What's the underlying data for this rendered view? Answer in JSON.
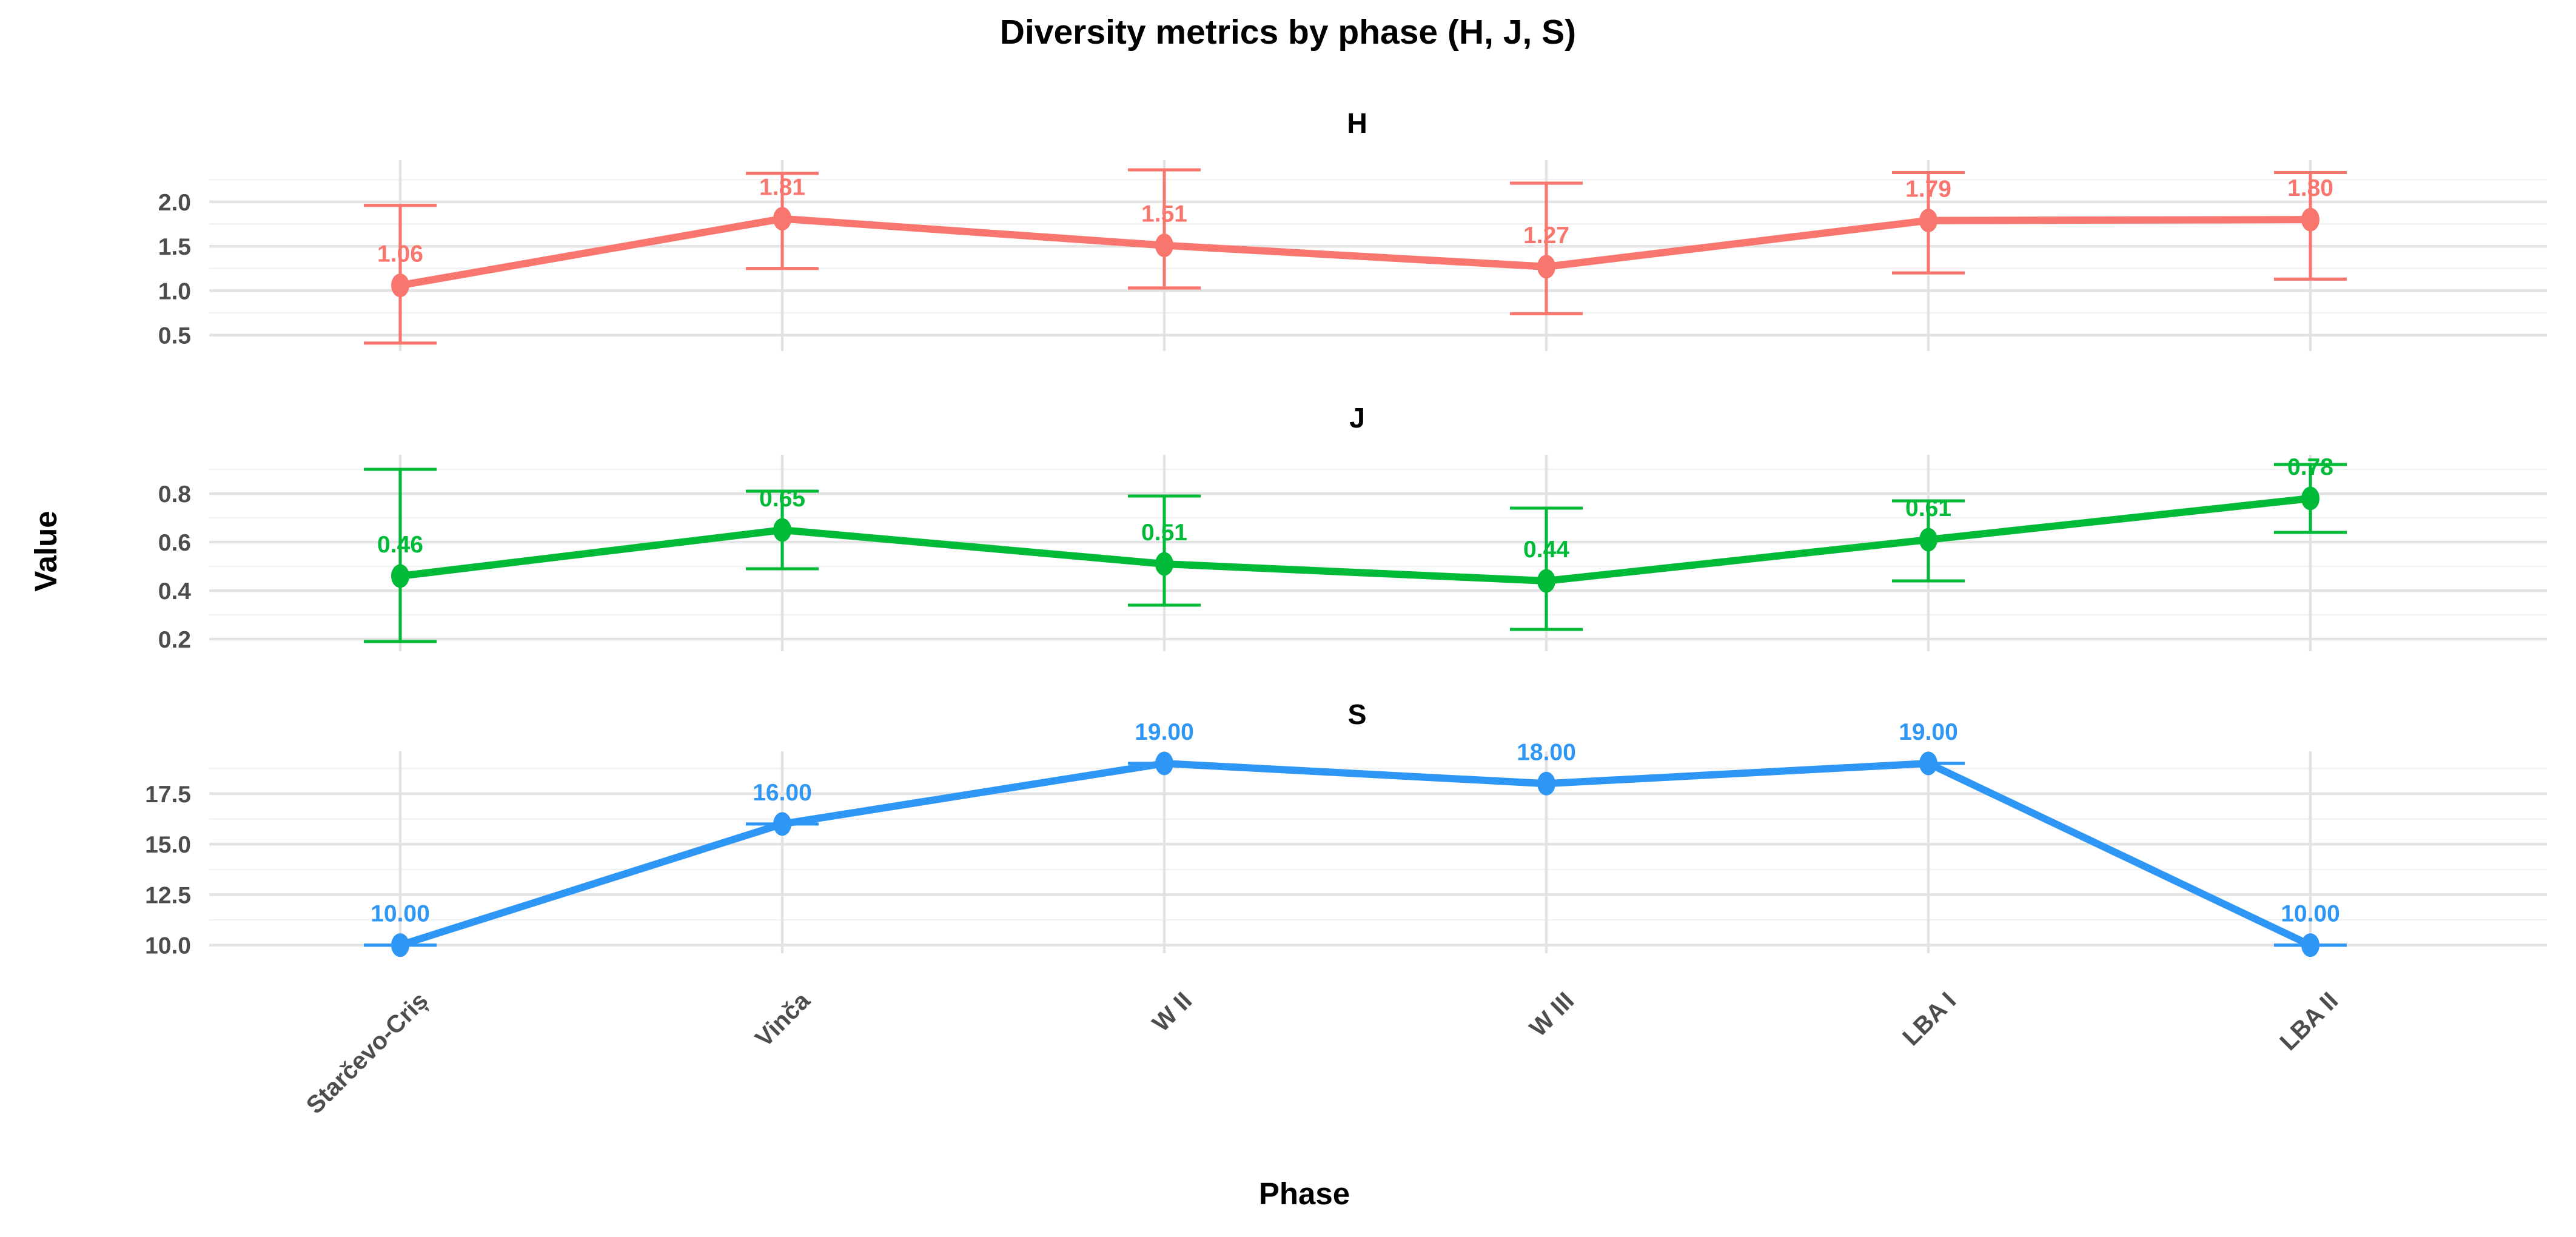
{
  "title": "Diversity metrics by phase (H, J, S)",
  "axes": {
    "x_label": "Phase",
    "y_label": "Value"
  },
  "style": {
    "background": "#ffffff",
    "grid_major": "#e3e3e3",
    "grid_minor": "#f1f1f1",
    "tick_label_color": "#4d4d4d",
    "text_color": "#000000"
  },
  "chart_data": {
    "type": "line",
    "title": "Diversity metrics by phase (H, J, S)",
    "xlabel": "Phase",
    "ylabel": "Value",
    "legend": "none",
    "grid": true,
    "categories": [
      "Starčevo-Criș",
      "Vinča",
      "W II",
      "W III",
      "LBA I",
      "LBA II"
    ],
    "facets": [
      {
        "name": "H",
        "color": "#F8766D",
        "values": [
          1.06,
          1.81,
          1.51,
          1.27,
          1.79,
          1.8
        ],
        "labels": [
          "1.06",
          "1.81",
          "1.51",
          "1.27",
          "1.79",
          "1.80"
        ],
        "error_low": [
          0.41,
          1.25,
          1.03,
          0.74,
          1.2,
          1.13
        ],
        "error_high": [
          1.96,
          2.32,
          2.36,
          2.21,
          2.33,
          2.33
        ],
        "ylim": [
          0.32,
          2.47
        ],
        "yticks": [
          {
            "v": 0.5,
            "label": "0.5"
          },
          {
            "v": 1.0,
            "label": "1.0"
          },
          {
            "v": 1.5,
            "label": "1.5"
          },
          {
            "v": 2.0,
            "label": "2.0"
          }
        ],
        "minor_step": 0.25
      },
      {
        "name": "J",
        "color": "#00BA38",
        "values": [
          0.46,
          0.65,
          0.51,
          0.44,
          0.61,
          0.78
        ],
        "labels": [
          "0.46",
          "0.65",
          "0.51",
          "0.44",
          "0.61",
          "0.78"
        ],
        "error_low": [
          0.19,
          0.49,
          0.34,
          0.24,
          0.44,
          0.64
        ],
        "error_high": [
          0.9,
          0.81,
          0.79,
          0.74,
          0.77,
          0.92
        ],
        "ylim": [
          0.15,
          0.96
        ],
        "yticks": [
          {
            "v": 0.2,
            "label": "0.2"
          },
          {
            "v": 0.4,
            "label": "0.4"
          },
          {
            "v": 0.6,
            "label": "0.6"
          },
          {
            "v": 0.8,
            "label": "0.8"
          }
        ],
        "minor_step": 0.1
      },
      {
        "name": "S",
        "color": "#2E96F5",
        "values": [
          10,
          16,
          19,
          18,
          19,
          10
        ],
        "labels": [
          "10.00",
          "16.00",
          "19.00",
          "18.00",
          "19.00",
          "10.00"
        ],
        "error_low": [
          10,
          16,
          19,
          18,
          19,
          10
        ],
        "error_high": [
          10,
          16,
          19,
          18,
          19,
          10
        ],
        "ylim": [
          9.6,
          19.6
        ],
        "yticks": [
          {
            "v": 10.0,
            "label": "10.0"
          },
          {
            "v": 12.5,
            "label": "12.5"
          },
          {
            "v": 15.0,
            "label": "15.0"
          },
          {
            "v": 17.5,
            "label": "17.5"
          }
        ],
        "minor_step": 1.25
      }
    ]
  }
}
